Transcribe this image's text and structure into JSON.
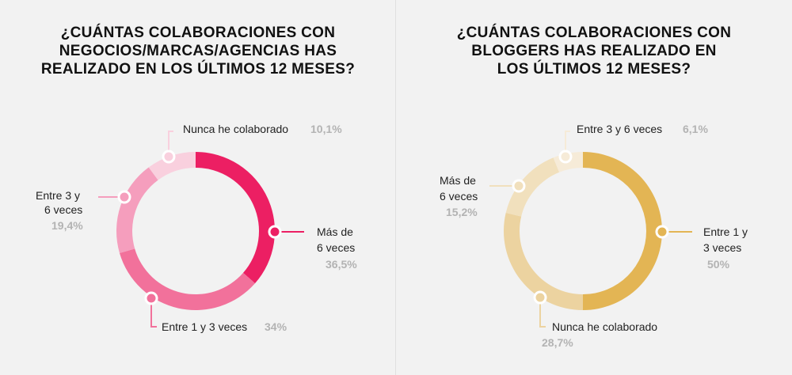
{
  "titles": {
    "left": [
      "¿CUÁNTAS COLABORACIONES CON",
      "NEGOCIOS/MARCAS/AGENCIAS HAS",
      "REALIZADO EN LOS ÚLTIMOS 12 MESES?"
    ],
    "right": [
      "¿CUÁNTAS COLABORACIONES CON",
      "BLOGGERS HAS REALIZADO EN",
      "LOS ÚLTIMOS 12 MESES?"
    ]
  },
  "chart_data": [
    {
      "type": "pie",
      "donut": true,
      "title": "¿CUÁNTAS COLABORACIONES CON NEGOCIOS/MARCAS/AGENCIAS HAS REALIZADO EN LOS ÚLTIMOS 12 MESES?",
      "slices": [
        {
          "label": "Más de 6 veces",
          "lines": [
            "Más de",
            "6 veces"
          ],
          "value": 36.5,
          "display": "36,5%",
          "color": "#ec1f63"
        },
        {
          "label": "Entre 1 y 3 veces",
          "lines": [
            "Entre 1 y 3 veces"
          ],
          "value": 34,
          "display": "34%",
          "color": "#f2719b"
        },
        {
          "label": "Entre 3 y 6 veces",
          "lines": [
            "Entre 3 y",
            "6 veces"
          ],
          "value": 19.4,
          "display": "19,4%",
          "color": "#f59ebd"
        },
        {
          "label": "Nunca he colaborado",
          "lines": [
            "Nunca he colaborado"
          ],
          "value": 10.1,
          "display": "10,1%",
          "color": "#f9d0de"
        }
      ]
    },
    {
      "type": "pie",
      "donut": true,
      "title": "¿CUÁNTAS COLABORACIONES CON BLOGGERS HAS REALIZADO EN LOS ÚLTIMOS 12 MESES?",
      "slices": [
        {
          "label": "Entre 1 y 3 veces",
          "lines": [
            "Entre 1 y",
            "3 veces"
          ],
          "value": 50,
          "display": "50%",
          "color": "#e3b554"
        },
        {
          "label": "Nunca he colaborado",
          "lines": [
            "Nunca he colaborado"
          ],
          "value": 28.7,
          "display": "28,7%",
          "color": "#ecd3a0"
        },
        {
          "label": "Más de 6 veces",
          "lines": [
            "Más de",
            "6 veces"
          ],
          "value": 15.2,
          "display": "15,2%",
          "color": "#f1e0bd"
        },
        {
          "label": "Entre 3 y 6 veces",
          "lines": [
            "Entre 3 y 6 veces"
          ],
          "value": 6.1,
          "display": "6,1%",
          "color": "#f6ebd8"
        }
      ]
    }
  ]
}
